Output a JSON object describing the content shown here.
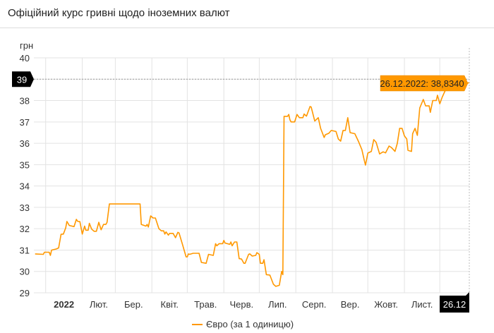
{
  "header": {
    "title": "Офіційний курс гривні щодо іноземних валют"
  },
  "chart_data": {
    "type": "line",
    "ylabel": "грн",
    "ylim": [
      29,
      40
    ],
    "yticks": [
      29,
      30,
      31,
      32,
      33,
      34,
      35,
      36,
      37,
      38,
      39,
      40
    ],
    "xlim": [
      "2021-12-22",
      "2022-12-26"
    ],
    "xticks": [
      {
        "date": "2022-01-01",
        "label": "2022",
        "bold": true
      },
      {
        "date": "2022-02-01",
        "label": "Лют."
      },
      {
        "date": "2022-03-01",
        "label": "Бер."
      },
      {
        "date": "2022-04-01",
        "label": "Квіт."
      },
      {
        "date": "2022-05-01",
        "label": "Трав."
      },
      {
        "date": "2022-06-01",
        "label": "Черв."
      },
      {
        "date": "2022-07-01",
        "label": "Лип."
      },
      {
        "date": "2022-08-01",
        "label": "Серп."
      },
      {
        "date": "2022-09-01",
        "label": "Вер."
      },
      {
        "date": "2022-10-01",
        "label": "Жовт."
      },
      {
        "date": "2022-11-01",
        "label": "Лист."
      },
      {
        "date": "2022-12-01",
        "label": ""
      }
    ],
    "grid": true,
    "legend_position": "bottom",
    "crosshair": {
      "x_label": "26.12",
      "y_label": "39",
      "tooltip": "26.12.2022: 38,8340"
    },
    "colors": {
      "series": "#ff9800",
      "tooltip": "#ff9800",
      "crosshair_label": "#000000",
      "grid": "#e3e3e3"
    },
    "series": [
      {
        "name": "Євро (за 1 одиницю)",
        "points": [
          [
            "2021-12-23",
            30.82
          ],
          [
            "2021-12-30",
            30.8
          ],
          [
            "2021-12-31",
            30.9
          ],
          [
            "2022-01-04",
            30.9
          ],
          [
            "2022-01-05",
            30.75
          ],
          [
            "2022-01-06",
            31.0
          ],
          [
            "2022-01-10",
            31.05
          ],
          [
            "2022-01-12",
            31.1
          ],
          [
            "2022-01-14",
            31.74
          ],
          [
            "2022-01-16",
            31.75
          ],
          [
            "2022-01-18",
            32.04
          ],
          [
            "2022-01-19",
            32.34
          ],
          [
            "2022-01-21",
            32.15
          ],
          [
            "2022-01-25",
            32.1
          ],
          [
            "2022-01-27",
            32.44
          ],
          [
            "2022-01-28",
            32.35
          ],
          [
            "2022-01-30",
            32.33
          ],
          [
            "2022-02-01",
            31.75
          ],
          [
            "2022-02-03",
            32.12
          ],
          [
            "2022-02-04",
            31.93
          ],
          [
            "2022-02-06",
            31.93
          ],
          [
            "2022-02-07",
            32.25
          ],
          [
            "2022-02-09",
            31.98
          ],
          [
            "2022-02-11",
            31.88
          ],
          [
            "2022-02-13",
            31.88
          ],
          [
            "2022-02-15",
            32.3
          ],
          [
            "2022-02-17",
            31.95
          ],
          [
            "2022-02-19",
            32.2
          ],
          [
            "2022-02-21",
            32.2
          ],
          [
            "2022-02-22",
            32.3
          ],
          [
            "2022-02-24",
            33.16
          ],
          [
            "2022-03-22",
            33.16
          ],
          [
            "2022-03-23",
            32.2
          ],
          [
            "2022-03-27",
            32.12
          ],
          [
            "2022-03-28",
            32.2
          ],
          [
            "2022-03-29",
            32.08
          ],
          [
            "2022-03-31",
            32.6
          ],
          [
            "2022-04-02",
            32.5
          ],
          [
            "2022-04-04",
            32.5
          ],
          [
            "2022-04-07",
            32.0
          ],
          [
            "2022-04-09",
            31.9
          ],
          [
            "2022-04-11",
            31.9
          ],
          [
            "2022-04-12",
            31.75
          ],
          [
            "2022-04-13",
            31.85
          ],
          [
            "2022-04-15",
            31.7
          ],
          [
            "2022-04-16",
            31.78
          ],
          [
            "2022-04-19",
            31.78
          ],
          [
            "2022-04-21",
            31.58
          ],
          [
            "2022-04-23",
            31.83
          ],
          [
            "2022-04-24",
            31.8
          ],
          [
            "2022-04-27",
            31.25
          ],
          [
            "2022-04-30",
            30.68
          ],
          [
            "2022-05-01",
            30.68
          ],
          [
            "2022-05-02",
            30.82
          ],
          [
            "2022-05-03",
            30.8
          ],
          [
            "2022-05-06",
            30.85
          ],
          [
            "2022-05-11",
            30.85
          ],
          [
            "2022-05-13",
            30.42
          ],
          [
            "2022-05-17",
            30.38
          ],
          [
            "2022-05-19",
            30.8
          ],
          [
            "2022-05-23",
            30.75
          ],
          [
            "2022-05-25",
            31.3
          ],
          [
            "2022-05-26",
            31.2
          ],
          [
            "2022-05-28",
            31.3
          ],
          [
            "2022-05-31",
            31.3
          ],
          [
            "2022-06-01",
            31.45
          ],
          [
            "2022-06-02",
            31.33
          ],
          [
            "2022-06-06",
            31.27
          ],
          [
            "2022-06-07",
            31.38
          ],
          [
            "2022-06-08",
            31.2
          ],
          [
            "2022-06-10",
            31.38
          ],
          [
            "2022-06-12",
            31.38
          ],
          [
            "2022-06-14",
            30.6
          ],
          [
            "2022-06-16",
            30.58
          ],
          [
            "2022-06-18",
            30.38
          ],
          [
            "2022-06-19",
            30.38
          ],
          [
            "2022-06-22",
            30.8
          ],
          [
            "2022-06-23",
            30.82
          ],
          [
            "2022-06-25",
            30.72
          ],
          [
            "2022-06-28",
            30.75
          ],
          [
            "2022-06-29",
            30.88
          ],
          [
            "2022-07-01",
            30.8
          ],
          [
            "2022-07-02",
            30.38
          ],
          [
            "2022-07-04",
            30.38
          ],
          [
            "2022-07-05",
            30.55
          ],
          [
            "2022-07-07",
            29.85
          ],
          [
            "2022-07-10",
            29.83
          ],
          [
            "2022-07-13",
            29.4
          ],
          [
            "2022-07-15",
            29.3
          ],
          [
            "2022-07-18",
            29.35
          ],
          [
            "2022-07-20",
            30.0
          ],
          [
            "2022-07-21",
            29.85
          ],
          [
            "2022-07-22",
            37.26
          ],
          [
            "2022-07-25",
            37.26
          ],
          [
            "2022-07-26",
            37.35
          ],
          [
            "2022-07-27",
            37.1
          ],
          [
            "2022-07-28",
            37.0
          ],
          [
            "2022-07-31",
            37.0
          ],
          [
            "2022-08-02",
            37.35
          ],
          [
            "2022-08-04",
            37.2
          ],
          [
            "2022-08-07",
            37.2
          ],
          [
            "2022-08-08",
            37.37
          ],
          [
            "2022-08-10",
            37.27
          ],
          [
            "2022-08-13",
            37.72
          ],
          [
            "2022-08-14",
            37.7
          ],
          [
            "2022-08-17",
            37.04
          ],
          [
            "2022-08-20",
            37.2
          ],
          [
            "2022-08-22",
            36.7
          ],
          [
            "2022-08-25",
            36.27
          ],
          [
            "2022-08-26",
            36.4
          ],
          [
            "2022-08-29",
            36.47
          ],
          [
            "2022-08-31",
            36.6
          ],
          [
            "2022-09-04",
            36.55
          ],
          [
            "2022-09-06",
            36.2
          ],
          [
            "2022-09-08",
            36.1
          ],
          [
            "2022-09-10",
            36.6
          ],
          [
            "2022-09-12",
            36.6
          ],
          [
            "2022-09-14",
            37.2
          ],
          [
            "2022-09-16",
            36.5
          ],
          [
            "2022-09-20",
            36.45
          ],
          [
            "2022-09-23",
            36.1
          ],
          [
            "2022-09-26",
            35.7
          ],
          [
            "2022-09-28",
            35.2
          ],
          [
            "2022-09-29",
            34.98
          ],
          [
            "2022-10-01",
            35.54
          ],
          [
            "2022-10-04",
            35.62
          ],
          [
            "2022-10-06",
            36.17
          ],
          [
            "2022-10-08",
            36.05
          ],
          [
            "2022-10-11",
            35.5
          ],
          [
            "2022-10-14",
            35.6
          ],
          [
            "2022-10-16",
            35.55
          ],
          [
            "2022-10-19",
            35.87
          ],
          [
            "2022-10-21",
            35.8
          ],
          [
            "2022-10-24",
            35.62
          ],
          [
            "2022-10-26",
            36.0
          ],
          [
            "2022-10-28",
            36.7
          ],
          [
            "2022-10-30",
            36.7
          ],
          [
            "2022-11-01",
            36.35
          ],
          [
            "2022-11-03",
            36.2
          ],
          [
            "2022-11-04",
            35.67
          ],
          [
            "2022-11-07",
            35.62
          ],
          [
            "2022-11-08",
            36.45
          ],
          [
            "2022-11-10",
            36.7
          ],
          [
            "2022-11-12",
            36.37
          ],
          [
            "2022-11-14",
            37.65
          ],
          [
            "2022-11-17",
            38.05
          ],
          [
            "2022-11-19",
            37.75
          ],
          [
            "2022-11-22",
            37.75
          ],
          [
            "2022-11-23",
            37.45
          ],
          [
            "2022-11-25",
            38.0
          ],
          [
            "2022-11-28",
            38.0
          ],
          [
            "2022-11-29",
            38.25
          ],
          [
            "2022-12-01",
            37.85
          ],
          [
            "2022-12-03",
            38.15
          ],
          [
            "2022-12-05",
            38.4
          ],
          [
            "2022-12-07",
            38.6
          ],
          [
            "2022-12-14",
            38.75
          ],
          [
            "2022-12-26",
            38.834
          ]
        ]
      }
    ]
  }
}
